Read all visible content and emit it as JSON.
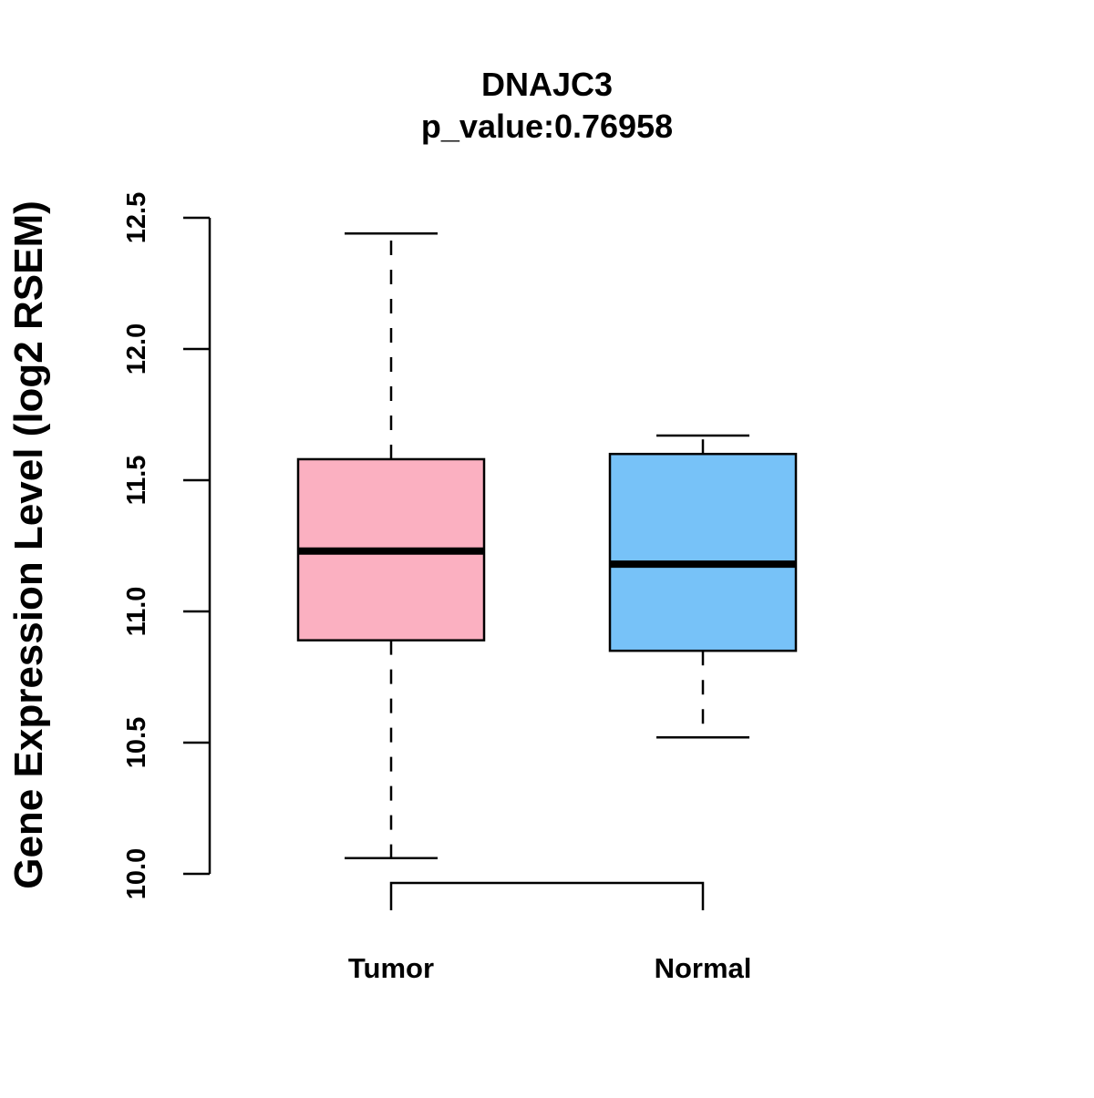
{
  "chart_data": {
    "type": "boxplot",
    "title": "DNAJC3",
    "subtitle": "p_value:0.76958",
    "xlabel": "",
    "ylabel": "Gene Expression Level (log2 RSEM)",
    "ylim": [
      10.0,
      12.5
    ],
    "y_ticks": [
      "10.0",
      "10.5",
      "11.0",
      "11.5",
      "12.0",
      "12.5"
    ],
    "grid": false,
    "legend": "none",
    "categories": [
      "Tumor",
      "Normal"
    ],
    "boxes": [
      {
        "category": "Tumor",
        "whisker_low": 10.06,
        "q1": 10.89,
        "median": 11.23,
        "q3": 11.58,
        "whisker_high": 12.44,
        "color": "#FBB0C1"
      },
      {
        "category": "Normal",
        "whisker_low": 10.52,
        "q1": 10.85,
        "median": 11.18,
        "q3": 11.6,
        "whisker_high": 11.67,
        "color": "#77C2F8"
      }
    ],
    "comparison_bracket": [
      "Tumor",
      "Normal"
    ]
  }
}
